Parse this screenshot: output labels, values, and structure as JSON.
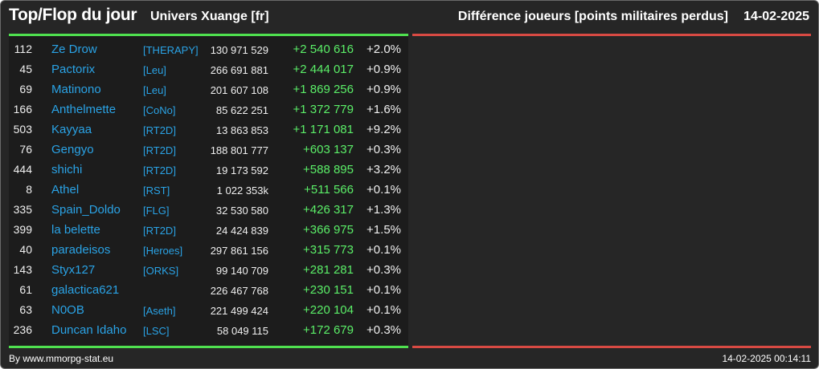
{
  "header": {
    "title": "Top/Flop du jour",
    "universe": "Univers Xuange [fr]",
    "metric": "Différence joueurs [points militaires perdus]",
    "date": "14-02-2025"
  },
  "colors": {
    "background": "#262626",
    "panel": "#1c1c1c",
    "top_accent": "#4fe04f",
    "flop_accent": "#d84a43",
    "player_link": "#2aa3e6",
    "gain": "#5bef68"
  },
  "top_rows": [
    {
      "rank": "112",
      "name": "Ze Drow",
      "alliance": "[THERAPY]",
      "points": "130 971 529",
      "diff": "+2 540 616",
      "pct": "+2.0%"
    },
    {
      "rank": "45",
      "name": "Pactorix",
      "alliance": "[Leu]",
      "points": "266 691 881",
      "diff": "+2 444 017",
      "pct": "+0.9%"
    },
    {
      "rank": "69",
      "name": "Matinono",
      "alliance": "[Leu]",
      "points": "201 607 108",
      "diff": "+1 869 256",
      "pct": "+0.9%"
    },
    {
      "rank": "166",
      "name": "Anthelmette",
      "alliance": "[CoNo]",
      "points": "85 622 251",
      "diff": "+1 372 779",
      "pct": "+1.6%"
    },
    {
      "rank": "503",
      "name": "Kayyaa",
      "alliance": "[RT2D]",
      "points": "13 863 853",
      "diff": "+1 171 081",
      "pct": "+9.2%"
    },
    {
      "rank": "76",
      "name": "Gengyo",
      "alliance": "[RT2D]",
      "points": "188 801 777",
      "diff": "+603 137",
      "pct": "+0.3%"
    },
    {
      "rank": "444",
      "name": "shichi",
      "alliance": "[RT2D]",
      "points": "19 173 592",
      "diff": "+588 895",
      "pct": "+3.2%"
    },
    {
      "rank": "8",
      "name": "Athel",
      "alliance": "[RST]",
      "points": "1 022 353k",
      "diff": "+511 566",
      "pct": "+0.1%"
    },
    {
      "rank": "335",
      "name": "Spain_Doldo",
      "alliance": "[FLG]",
      "points": "32 530 580",
      "diff": "+426 317",
      "pct": "+1.3%"
    },
    {
      "rank": "399",
      "name": "la belette",
      "alliance": "[RT2D]",
      "points": "24 424 839",
      "diff": "+366 975",
      "pct": "+1.5%"
    },
    {
      "rank": "40",
      "name": "paradeisos",
      "alliance": "[Heroes]",
      "points": "297 861 156",
      "diff": "+315 773",
      "pct": "+0.1%"
    },
    {
      "rank": "143",
      "name": "Styx127",
      "alliance": "[ORKS]",
      "points": "99 140 709",
      "diff": "+281 281",
      "pct": "+0.3%"
    },
    {
      "rank": "61",
      "name": "galactica621",
      "alliance": "",
      "points": "226 467 768",
      "diff": "+230 151",
      "pct": "+0.1%"
    },
    {
      "rank": "63",
      "name": "N0OB",
      "alliance": "[Aseth]",
      "points": "221 499 424",
      "diff": "+220 104",
      "pct": "+0.1%"
    },
    {
      "rank": "236",
      "name": "Duncan Idaho",
      "alliance": "[LSC]",
      "points": "58 049 115",
      "diff": "+172 679",
      "pct": "+0.3%"
    }
  ],
  "footer": {
    "credit": "By www.mmorpg-stat.eu",
    "timestamp": "14-02-2025 00:14:11"
  }
}
